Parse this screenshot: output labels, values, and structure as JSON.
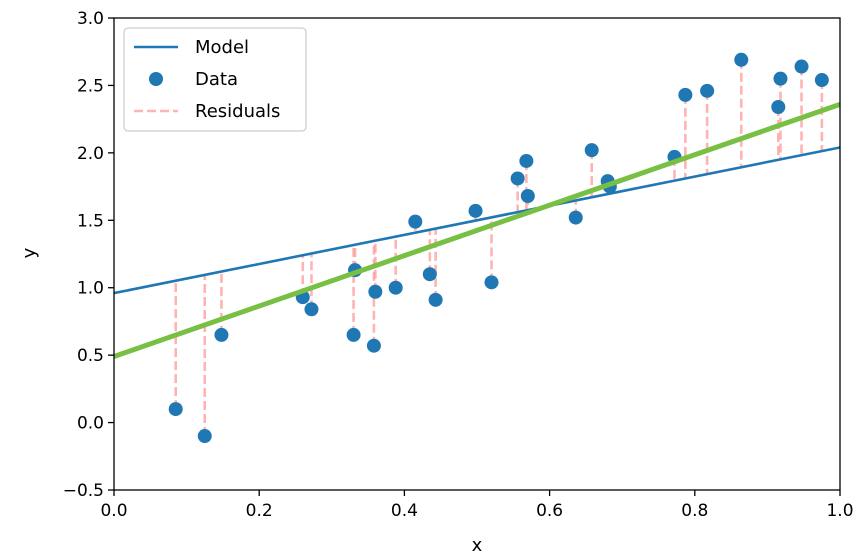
{
  "chart_data": {
    "type": "scatter",
    "title": "",
    "xlabel": "x",
    "ylabel": "y",
    "xlim": [
      0.0,
      1.0
    ],
    "ylim": [
      -0.5,
      3.0
    ],
    "xticks": [
      "0.0",
      "0.2",
      "0.4",
      "0.6",
      "0.8",
      "1.0"
    ],
    "yticks": [
      "−0.5",
      "0.0",
      "0.5",
      "1.0",
      "1.5",
      "2.0",
      "2.5",
      "3.0"
    ],
    "grid": false,
    "legend_position": "top-left",
    "legend": {
      "model_label": "Model",
      "data_label": "Data",
      "residuals_label": "Residuals"
    },
    "colors": {
      "model": "#1f77b4",
      "data": "#1f77b4",
      "residuals": "#ff9999",
      "fit": "#77c043"
    },
    "model_line": {
      "x": [
        0.0,
        1.0
      ],
      "y": [
        0.96,
        2.04
      ]
    },
    "fit_line": {
      "x": [
        0.0,
        1.0
      ],
      "y": [
        0.49,
        2.36
      ]
    },
    "data": [
      {
        "x": 0.085,
        "y": 0.1
      },
      {
        "x": 0.125,
        "y": -0.1
      },
      {
        "x": 0.148,
        "y": 0.65
      },
      {
        "x": 0.26,
        "y": 0.93
      },
      {
        "x": 0.272,
        "y": 0.84
      },
      {
        "x": 0.33,
        "y": 0.65
      },
      {
        "x": 0.332,
        "y": 1.13
      },
      {
        "x": 0.358,
        "y": 0.57
      },
      {
        "x": 0.36,
        "y": 0.97
      },
      {
        "x": 0.388,
        "y": 1.0
      },
      {
        "x": 0.415,
        "y": 1.49
      },
      {
        "x": 0.435,
        "y": 1.1
      },
      {
        "x": 0.443,
        "y": 0.91
      },
      {
        "x": 0.498,
        "y": 1.57
      },
      {
        "x": 0.52,
        "y": 1.04
      },
      {
        "x": 0.556,
        "y": 1.81
      },
      {
        "x": 0.568,
        "y": 1.94
      },
      {
        "x": 0.57,
        "y": 1.68
      },
      {
        "x": 0.636,
        "y": 1.52
      },
      {
        "x": 0.658,
        "y": 2.02
      },
      {
        "x": 0.68,
        "y": 1.79
      },
      {
        "x": 0.683,
        "y": 1.75
      },
      {
        "x": 0.772,
        "y": 1.97
      },
      {
        "x": 0.787,
        "y": 2.43
      },
      {
        "x": 0.817,
        "y": 2.46
      },
      {
        "x": 0.864,
        "y": 2.69
      },
      {
        "x": 0.915,
        "y": 2.34
      },
      {
        "x": 0.918,
        "y": 2.55
      },
      {
        "x": 0.947,
        "y": 2.64
      },
      {
        "x": 0.975,
        "y": 2.54
      }
    ]
  }
}
